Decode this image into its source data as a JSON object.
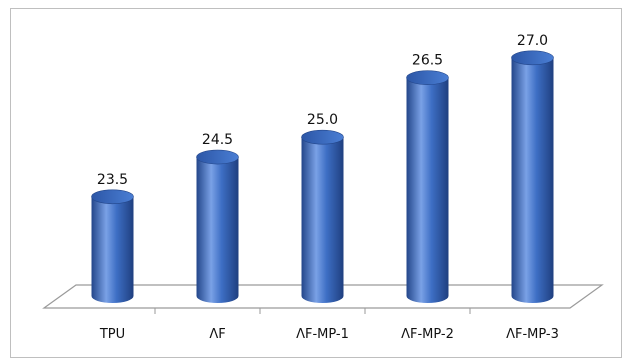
{
  "chart_data": {
    "type": "bar",
    "title": "",
    "xlabel": "",
    "ylabel": "",
    "categories": [
      "TPU",
      "AF",
      "AF-MP-1",
      "AF-MP-2",
      "AF-MP-3"
    ],
    "category_labels": [
      "TPU",
      "ΛF",
      "ΛF-MP-1",
      "ΛF-MP-2",
      "ΛF-MP-3"
    ],
    "values": [
      23.5,
      24.5,
      25.0,
      26.5,
      27.0
    ],
    "value_labels": [
      "23.5",
      "24.5",
      "25.0",
      "26.5",
      "27.0"
    ],
    "ylim": [
      21,
      27.5
    ],
    "grid": false,
    "legend": "none",
    "bar_style": "3d-cylinder",
    "colors": {
      "bar": "#3d6ec4",
      "bar_dark": "#23468a",
      "bar_light": "#7aa1e6",
      "floor": "#9a9a9a"
    }
  }
}
